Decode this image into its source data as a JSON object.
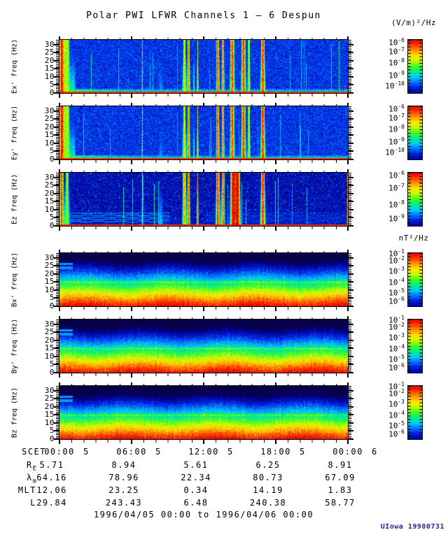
{
  "title": "Polar PWI LFWR Channels 1 — 6 Despun",
  "credit": "UIowa 19980731",
  "footer_range": "1996/04/05 00:00 to 1996/04/06 00:00",
  "colors": {
    "background": "#ffffff",
    "axis": "#000000",
    "credit_text": "#24248c",
    "rainbow": [
      "#d80000",
      "#ff3c00",
      "#ff9600",
      "#ffe400",
      "#bdff00",
      "#46fa28",
      "#00f082",
      "#00cdf5",
      "#0073ff",
      "#001ee1",
      "#0000a0"
    ]
  },
  "chart_data": {
    "type": "heatmap",
    "title": "Polar PWI LFWR Channels 1 — 6 Despun",
    "time_range": "1996/04/05 00:00 to 1996/04/06 00:00",
    "x_axis": {
      "label": "SCET",
      "major_ticks": [
        {
          "time": "00:00",
          "day": "5"
        },
        {
          "time": "06:00",
          "day": "5"
        },
        {
          "time": "12:00",
          "day": "5"
        },
        {
          "time": "18:00",
          "day": "5"
        },
        {
          "time": "00:00",
          "day": "6"
        }
      ],
      "minor_tick_interval_hours": 1
    },
    "y_axis": {
      "unit": "Hz",
      "ticks": [
        30,
        25,
        20,
        15,
        10,
        5,
        0
      ],
      "range": [
        0,
        33
      ]
    },
    "colorbar_units": {
      "electric": "(V/m)²/Hz",
      "magnetic": "nT²/Hz"
    },
    "ephemeris_rows": [
      {
        "label_main": "R",
        "label_sub": "E",
        "values": [
          "5.71",
          "8.94",
          "5.61",
          "6.25",
          "8.91"
        ]
      },
      {
        "label_main": "λ",
        "label_sub": "m",
        "values": [
          "64.16",
          "78.96",
          "22.34",
          "80.73",
          "67.09"
        ]
      },
      {
        "label_main": "MLT",
        "label_sub": "",
        "values": [
          "12.06",
          "23.25",
          "0.34",
          "14.19",
          "1.83"
        ]
      },
      {
        "label_main": "L",
        "label_sub": "",
        "values": [
          "29.84",
          "243.43",
          "6.48",
          "240.38",
          "58.77"
        ]
      }
    ],
    "panels": [
      {
        "ylabel": "Ex' freq (Hz)",
        "kind": "electric",
        "dark": false,
        "cyan_band": false,
        "colorbar_exponents": [
          "-6",
          "-7",
          "-8",
          "-9",
          "-10"
        ],
        "bursts": [
          [
            0.006,
            4,
            1.05
          ],
          [
            0.026,
            5,
            0.72
          ],
          [
            0.048,
            4,
            0.38
          ],
          [
            0.286,
            0.8,
            0.92
          ],
          [
            0.35,
            5,
            0.3
          ],
          [
            0.432,
            3,
            0.78
          ],
          [
            0.447,
            2,
            0.95
          ],
          [
            0.465,
            1.5,
            0.5
          ],
          [
            0.478,
            1.2,
            0.82
          ],
          [
            0.52,
            1,
            0.4
          ],
          [
            0.548,
            2.5,
            1.02
          ],
          [
            0.566,
            2,
            0.98
          ],
          [
            0.598,
            3.5,
            1.03
          ],
          [
            0.637,
            3.5,
            1.04
          ],
          [
            0.656,
            2,
            0.8
          ],
          [
            0.704,
            3.5,
            1.04
          ]
        ]
      },
      {
        "ylabel": "Ey' freq (Hz)",
        "kind": "electric",
        "dark": false,
        "cyan_band": false,
        "colorbar_exponents": [
          "-6",
          "-7",
          "-8",
          "-9",
          "-10"
        ],
        "bursts": [
          [
            0.006,
            4,
            1.05
          ],
          [
            0.026,
            5,
            0.72
          ],
          [
            0.048,
            4,
            0.38
          ],
          [
            0.286,
            0.8,
            0.92
          ],
          [
            0.35,
            5,
            0.3
          ],
          [
            0.432,
            3,
            0.78
          ],
          [
            0.447,
            2,
            0.95
          ],
          [
            0.465,
            1.5,
            0.5
          ],
          [
            0.478,
            1.2,
            0.82
          ],
          [
            0.52,
            1,
            0.4
          ],
          [
            0.548,
            2.5,
            1.02
          ],
          [
            0.566,
            2,
            0.98
          ],
          [
            0.598,
            3.5,
            1.03
          ],
          [
            0.637,
            3.5,
            1.04
          ],
          [
            0.656,
            2,
            0.8
          ],
          [
            0.704,
            3.5,
            1.04
          ]
        ]
      },
      {
        "ylabel": "Ez freq (Hz)",
        "kind": "electric",
        "dark": true,
        "cyan_band": true,
        "colorbar_exponents": [
          "-6",
          "-7",
          "-8",
          "-9"
        ],
        "bursts": [
          [
            0.006,
            3,
            1.0
          ],
          [
            0.025,
            4,
            0.7
          ],
          [
            0.286,
            0.8,
            0.85
          ],
          [
            0.35,
            4,
            0.35
          ],
          [
            0.432,
            3,
            0.9
          ],
          [
            0.447,
            2,
            1.0
          ],
          [
            0.478,
            1.2,
            0.9
          ],
          [
            0.548,
            3,
            1.05
          ],
          [
            0.566,
            2.5,
            1.0
          ],
          [
            0.6,
            4,
            1.1
          ],
          [
            0.617,
            4,
            1.1
          ],
          [
            0.704,
            3.5,
            1.05
          ],
          [
            0.998,
            1,
            0.95
          ]
        ]
      },
      {
        "ylabel": "Bx' freq (Hz)",
        "kind": "magnetic",
        "colorbar_exponents": [
          "-1",
          "-2",
          "-3",
          "-4",
          "-5",
          "-6"
        ],
        "faint_line_hz": 15,
        "dash_lines_hz": [
          24,
          26.5
        ],
        "dash_extent": 0.045
      },
      {
        "ylabel": "By' freq (Hz)",
        "kind": "magnetic",
        "colorbar_exponents": [
          "-1",
          "-2",
          "-3",
          "-4",
          "-5",
          "-6"
        ],
        "faint_line_hz": 15,
        "dash_lines_hz": [
          24,
          26.5
        ],
        "dash_extent": 0.045
      },
      {
        "ylabel": "Bz freq (Hz)",
        "kind": "magnetic",
        "colorbar_exponents": [
          "-1",
          "-2",
          "-3",
          "-4",
          "-5",
          "-6"
        ],
        "faint_line_hz": 15,
        "dash_lines_hz": [
          24,
          26.5
        ],
        "dash_extent": 0.045
      }
    ]
  }
}
